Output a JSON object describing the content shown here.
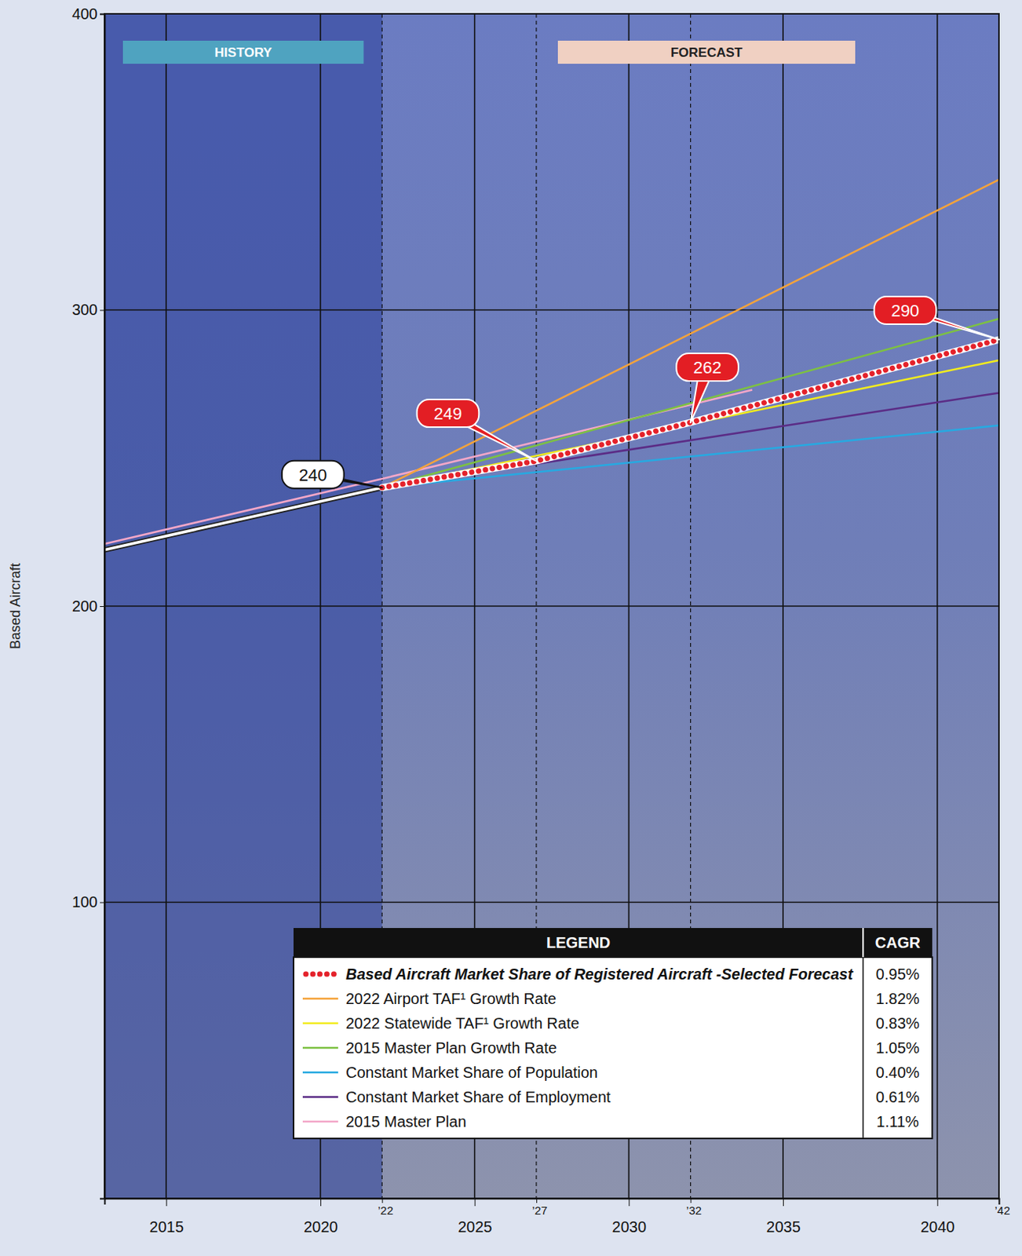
{
  "chart_data": {
    "type": "line",
    "y_label": "Based Aircraft",
    "annotations": [
      "HISTORY",
      "FORECAST"
    ],
    "legend_title": "LEGEND",
    "legend_value_title": "CAGR",
    "xlim": [
      2013,
      2042
    ],
    "ylim": [
      0,
      400
    ],
    "xticks": [
      2015,
      2020,
      {
        "value": 2022,
        "label": "’22"
      },
      2025,
      {
        "value": 2027,
        "label": "’27"
      },
      2030,
      {
        "value": 2032,
        "label": "’32"
      },
      2035,
      2040,
      {
        "value": 2042,
        "label": "’42"
      }
    ],
    "yticks": [
      100,
      200,
      300,
      400
    ],
    "grid": true,
    "legend": "bottom",
    "history": {
      "x": [
        2013,
        2022
      ],
      "values": [
        219,
        240
      ],
      "color": "#ffffff",
      "line_style": "solid"
    },
    "series": [
      {
        "name": "Based Aircraft Market Share of Registered Aircraft -Selected Forecast",
        "color": "#e4222b",
        "line_style": "dotted",
        "data_labels": true,
        "cagr": "0.95%",
        "x": [
          2022,
          2027,
          2032,
          2042
        ],
        "values": [
          240,
          249,
          262,
          290
        ]
      },
      {
        "name": "2022 Airport TAF¹ Growth Rate",
        "color": "#f5a33b",
        "line_style": "solid",
        "cagr": "1.82%",
        "x": [
          2022,
          2042
        ],
        "values": [
          240,
          344
        ]
      },
      {
        "name": "2022 Statewide TAF¹ Growth Rate",
        "color": "#f2ec1e",
        "line_style": "solid",
        "cagr": "0.83%",
        "x": [
          2022,
          2042
        ],
        "values": [
          240,
          283
        ]
      },
      {
        "name": "2015 Master Plan Growth Rate",
        "color": "#7dc142",
        "line_style": "solid",
        "cagr": "1.05%",
        "x": [
          2022,
          2042
        ],
        "values": [
          240,
          297
        ]
      },
      {
        "name": "Constant Market Share of Population",
        "color": "#27a9e1",
        "line_style": "solid",
        "cagr": "0.40%",
        "x": [
          2022,
          2042
        ],
        "values": [
          240,
          261
        ]
      },
      {
        "name": "Constant Market Share of Employment",
        "color": "#5b2c86",
        "line_style": "solid",
        "cagr": "0.61%",
        "x": [
          2022,
          2042
        ],
        "values": [
          240,
          272
        ]
      },
      {
        "name": "2015 Master Plan",
        "color": "#f3a7c8",
        "line_style": "solid",
        "cagr": "1.11%",
        "x": [
          2013,
          2022,
          2034
        ],
        "values": [
          221,
          243,
          273
        ]
      }
    ]
  }
}
